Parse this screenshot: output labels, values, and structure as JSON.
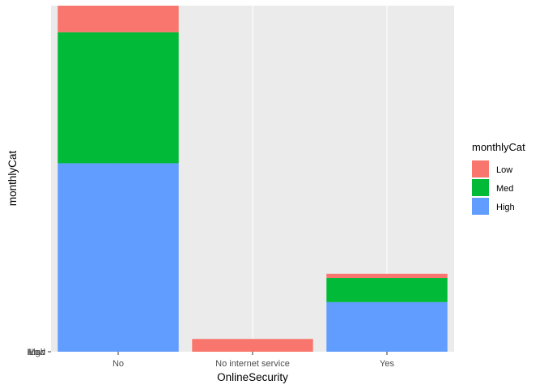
{
  "chart_data": {
    "type": "bar",
    "stacked": true,
    "xlabel": "OnlineSecurity",
    "ylabel": "monthlyCat",
    "categories": [
      "No",
      "No internet service",
      "Yes"
    ],
    "y_tick_labels": [
      "High",
      "Low",
      "Med"
    ],
    "series": [
      {
        "name": "High",
        "color": "#619CFF",
        "values": [
          1475,
          0,
          388
        ]
      },
      {
        "name": "Med",
        "color": "#00BA38",
        "values": [
          1025,
          0,
          189
        ]
      },
      {
        "name": "Low",
        "color": "#F8766D",
        "values": [
          208,
          100,
          33
        ]
      }
    ],
    "ylim": [
      0,
      2708
    ],
    "grid": true,
    "legend": {
      "title": "monthlyCat",
      "position": "right",
      "entries": [
        {
          "label": "Low",
          "color": "#F8766D"
        },
        {
          "label": "Med",
          "color": "#00BA38"
        },
        {
          "label": "High",
          "color": "#619CFF"
        }
      ]
    },
    "panel_background": "#EBEBEB",
    "gridline_color": "#FFFFFF"
  }
}
